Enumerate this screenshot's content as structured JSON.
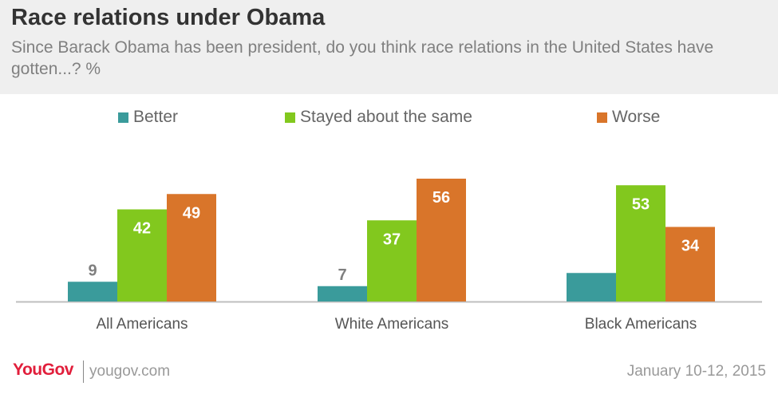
{
  "header": {
    "title": "Race relations under Obama",
    "subtitle": "Since Barack Obama has been president, do you think race relations in the United States have gotten...? %"
  },
  "colors": {
    "better": "#3a9b9b",
    "same": "#82c81e",
    "worse": "#d9752a",
    "label_dark": "#7f7f7f",
    "label_light": "#ffffff"
  },
  "chart_data": {
    "type": "bar",
    "title": "Race relations under Obama",
    "categories": [
      "All Americans",
      "White Americans",
      "Black Americans"
    ],
    "series": [
      {
        "name": "Better",
        "values": [
          9,
          7,
          13
        ],
        "color": "#3a9b9b"
      },
      {
        "name": "Stayed about the same",
        "values": [
          42,
          37,
          53
        ],
        "color": "#82c81e"
      },
      {
        "name": "Worse",
        "values": [
          49,
          56,
          34
        ],
        "color": "#d9752a"
      }
    ],
    "legend": "top",
    "ylim": [
      0,
      60
    ],
    "grid": false,
    "xlabel": "",
    "ylabel": ""
  },
  "footer": {
    "brand": "YouGov",
    "site": "yougov.com",
    "date": "January 10-12, 2015"
  }
}
